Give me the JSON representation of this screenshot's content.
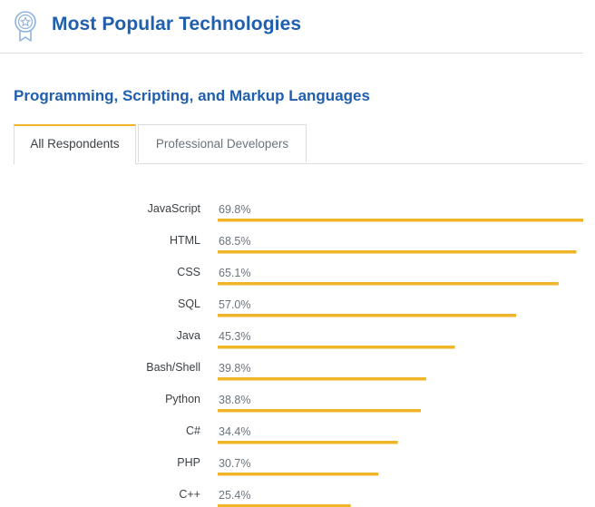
{
  "header": {
    "title": "Most Popular Technologies",
    "icon": "award-ribbon-icon"
  },
  "section": {
    "title": "Programming, Scripting, and Markup Languages"
  },
  "tabs": [
    {
      "label": "All Respondents",
      "active": true
    },
    {
      "label": "Professional Developers",
      "active": false
    }
  ],
  "colors": {
    "title": "#1f5fae",
    "bar": "#f0b429",
    "label": "#3b4045",
    "value": "#6a737c"
  },
  "chart_data": {
    "type": "bar",
    "orientation": "horizontal",
    "title": "",
    "xlabel": "",
    "ylabel": "",
    "xlim": [
      0,
      69.8
    ],
    "grid": false,
    "categories": [
      "JavaScript",
      "HTML",
      "CSS",
      "SQL",
      "Java",
      "Bash/Shell",
      "Python",
      "C#",
      "PHP",
      "C++"
    ],
    "values": [
      69.8,
      68.5,
      65.1,
      57.0,
      45.3,
      39.8,
      38.8,
      34.4,
      30.7,
      25.4
    ],
    "value_labels": [
      "69.8%",
      "68.5%",
      "65.1%",
      "57.0%",
      "45.3%",
      "39.8%",
      "38.8%",
      "34.4%",
      "30.7%",
      "25.4%"
    ]
  }
}
